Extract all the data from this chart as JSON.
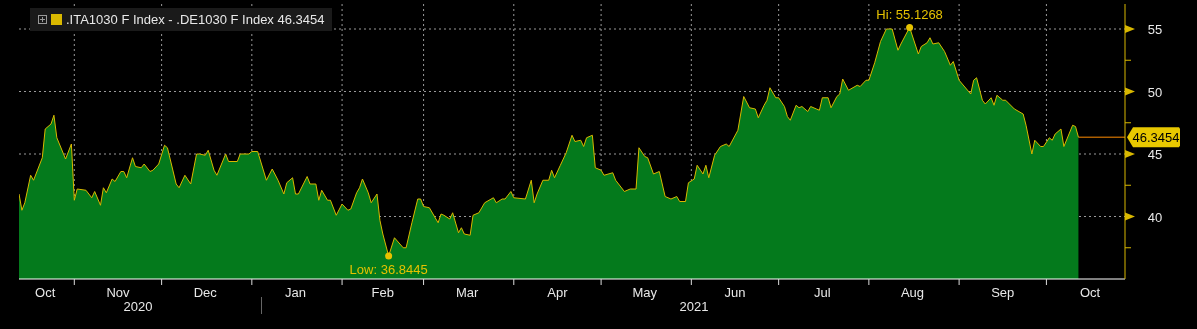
{
  "chart_data": {
    "type": "area",
    "annotations": [
      {
        "text": "Low: 36.8445",
        "x": "2021-02-17",
        "y": 36.8445
      },
      {
        "text": "Hi: 55.1268",
        "x": "2021-08-15",
        "y": 55.1268
      },
      "2020",
      "2021"
    ],
    "x": [
      "2020-10-13",
      "2020-10-14",
      "2020-10-15",
      "2020-10-17",
      "2020-10-18",
      "2020-10-21",
      "2020-10-22",
      "2020-10-24",
      "2020-10-25",
      "2020-10-26",
      "2020-10-29",
      "2020-10-31",
      "2020-11-01",
      "2020-11-02",
      "2020-11-05",
      "2020-11-07",
      "2020-11-08",
      "2020-11-10",
      "2020-11-11",
      "2020-11-12",
      "2020-11-14",
      "2020-11-15",
      "2020-11-17",
      "2020-11-18",
      "2020-11-19",
      "2020-11-21",
      "2020-11-22",
      "2020-11-24",
      "2020-11-25",
      "2020-11-27",
      "2020-11-28",
      "2020-11-30",
      "2020-12-02",
      "2020-12-03",
      "2020-12-06",
      "2020-12-07",
      "2020-12-09",
      "2020-12-11",
      "2020-12-13",
      "2020-12-14",
      "2020-12-16",
      "2020-12-17",
      "2020-12-19",
      "2020-12-20",
      "2020-12-23",
      "2020-12-24",
      "2020-12-27",
      "2020-12-28",
      "2020-12-31",
      "2021-01-01",
      "2021-01-03",
      "2021-01-06",
      "2021-01-08",
      "2021-01-10",
      "2021-01-12",
      "2021-01-13",
      "2021-01-15",
      "2021-01-16",
      "2021-01-17",
      "2021-01-20",
      "2021-01-21",
      "2021-01-23",
      "2021-01-24",
      "2021-01-25",
      "2021-01-27",
      "2021-01-28",
      "2021-01-30",
      "2021-02-01",
      "2021-02-03",
      "2021-02-04",
      "2021-02-06",
      "2021-02-07",
      "2021-02-08",
      "2021-02-10",
      "2021-02-11",
      "2021-02-13",
      "2021-02-14",
      "2021-02-15",
      "2021-02-17",
      "2021-02-19",
      "2021-02-22",
      "2021-02-23",
      "2021-02-25",
      "2021-02-27",
      "2021-02-28",
      "2021-03-01",
      "2021-03-03",
      "2021-03-06",
      "2021-03-07",
      "2021-03-08",
      "2021-03-10",
      "2021-03-11",
      "2021-03-13",
      "2021-03-14",
      "2021-03-15",
      "2021-03-17",
      "2021-03-18",
      "2021-03-20",
      "2021-03-22",
      "2021-03-25",
      "2021-03-26",
      "2021-03-28",
      "2021-03-29",
      "2021-03-31",
      "2021-04-01",
      "2021-04-05",
      "2021-04-07",
      "2021-04-08",
      "2021-04-09",
      "2021-04-11",
      "2021-04-13",
      "2021-04-14",
      "2021-04-15",
      "2021-04-17",
      "2021-04-19",
      "2021-04-21",
      "2021-04-22",
      "2021-04-24",
      "2021-04-25",
      "2021-04-26",
      "2021-04-28",
      "2021-04-29",
      "2021-05-01",
      "2021-05-02",
      "2021-05-05",
      "2021-05-06",
      "2021-05-09",
      "2021-05-11",
      "2021-05-13",
      "2021-05-14",
      "2021-05-16",
      "2021-05-17",
      "2021-05-19",
      "2021-05-21",
      "2021-05-23",
      "2021-05-25",
      "2021-05-27",
      "2021-05-28",
      "2021-05-30",
      "2021-05-31",
      "2021-06-02",
      "2021-06-03",
      "2021-06-05",
      "2021-06-06",
      "2021-06-07",
      "2021-06-09",
      "2021-06-11",
      "2021-06-13",
      "2021-06-14",
      "2021-06-17",
      "2021-06-19",
      "2021-06-21",
      "2021-06-23",
      "2021-06-24",
      "2021-06-26",
      "2021-06-27",
      "2021-06-28",
      "2021-06-30",
      "2021-07-01",
      "2021-07-03",
      "2021-07-04",
      "2021-07-05",
      "2021-07-07",
      "2021-07-08",
      "2021-07-09",
      "2021-07-11",
      "2021-07-12",
      "2021-07-14",
      "2021-07-15",
      "2021-07-16",
      "2021-07-18",
      "2021-07-19",
      "2021-07-21",
      "2021-07-22",
      "2021-07-23",
      "2021-07-25",
      "2021-07-28",
      "2021-07-29",
      "2021-07-31",
      "2021-08-01",
      "2021-08-03",
      "2021-08-05",
      "2021-08-07",
      "2021-08-08",
      "2021-08-09",
      "2021-08-11",
      "2021-08-12",
      "2021-08-15",
      "2021-08-18",
      "2021-08-19",
      "2021-08-21",
      "2021-08-22",
      "2021-08-23",
      "2021-08-25",
      "2021-08-27",
      "2021-08-29",
      "2021-08-30",
      "2021-09-01",
      "2021-09-05",
      "2021-09-06",
      "2021-09-07",
      "2021-09-09",
      "2021-09-10",
      "2021-09-12",
      "2021-09-13",
      "2021-09-14",
      "2021-09-16",
      "2021-09-17",
      "2021-09-20",
      "2021-09-23",
      "2021-09-24",
      "2021-09-26",
      "2021-09-27",
      "2021-09-29",
      "2021-09-30",
      "2021-10-02",
      "2021-10-03",
      "2021-10-04",
      "2021-10-06",
      "2021-10-07",
      "2021-10-10",
      "2021-10-11",
      "2021-10-12"
    ],
    "series": [
      {
        "type": "line",
        "name": ".ITA1030 F Index - .DE1030 F Index 46.3454",
        "color": "#d9b800",
        "values": [
          41.8,
          40.5,
          41.1,
          43.3,
          42.9,
          44.7,
          47.0,
          47.4,
          48.1,
          46.3,
          44.6,
          45.8,
          41.3,
          42.2,
          42.1,
          41.5,
          42.0,
          40.9,
          42.3,
          41.9,
          43.0,
          42.8,
          43.6,
          43.6,
          43.1,
          44.7,
          44.0,
          43.9,
          44.2,
          43.6,
          43.7,
          44.2,
          45.7,
          45.5,
          42.6,
          42.3,
          43.3,
          42.6,
          45.0,
          45.0,
          44.9,
          45.3,
          43.7,
          43.3,
          45.0,
          44.4,
          44.4,
          45.0,
          45.0,
          45.2,
          45.2,
          42.9,
          43.8,
          42.9,
          41.8,
          42.7,
          43.1,
          41.8,
          41.8,
          43.2,
          42.6,
          42.6,
          41.3,
          42.1,
          41.3,
          41.3,
          40.1,
          41.0,
          40.5,
          40.6,
          41.9,
          42.3,
          43.0,
          41.9,
          41.1,
          41.8,
          39.7,
          38.6,
          36.8445,
          38.3,
          37.5,
          37.5,
          39.5,
          41.4,
          41.4,
          40.8,
          40.7,
          39.5,
          40.2,
          40.1,
          39.8,
          40.3,
          38.7,
          39.1,
          38.6,
          38.5,
          40.1,
          40.3,
          41.1,
          41.5,
          41.1,
          41.4,
          41.4,
          42.0,
          41.5,
          41.4,
          42.9,
          41.1,
          41.8,
          42.9,
          42.9,
          43.7,
          43.1,
          44.1,
          45.1,
          46.5,
          46.0,
          46.1,
          45.6,
          46.3,
          46.5,
          43.9,
          43.7,
          43.3,
          43.5,
          42.9,
          42.0,
          42.2,
          42.2,
          45.5,
          44.8,
          44.7,
          43.4,
          43.6,
          41.6,
          41.4,
          41.6,
          41.2,
          41.2,
          42.7,
          43.0,
          44.1,
          43.4,
          44.1,
          43.1,
          44.9,
          45.6,
          45.8,
          45.6,
          46.9,
          49.6,
          48.7,
          48.6,
          47.9,
          48.9,
          49.3,
          50.3,
          49.5,
          49.5,
          48.8,
          48.0,
          47.7,
          48.9,
          48.7,
          48.8,
          48.4,
          48.8,
          48.6,
          48.5,
          49.5,
          49.5,
          48.7,
          49.6,
          49.8,
          51.0,
          50.1,
          50.5,
          50.4,
          50.9,
          50.9,
          52.3,
          54.0,
          55.0,
          55.0,
          55.0,
          53.3,
          53.8,
          55.1268,
          53.0,
          53.6,
          53.9,
          54.3,
          53.8,
          53.9,
          53.2,
          52.1,
          52.4,
          50.9,
          49.8,
          50.9,
          51.1,
          49.3,
          49.0,
          49.5,
          48.9,
          49.7,
          49.3,
          49.3,
          48.6,
          48.2,
          47.3,
          45.0,
          46.1,
          45.6,
          45.6,
          46.3,
          46.1,
          46.6,
          47.0,
          45.6,
          47.3,
          47.2,
          46.3454
        ]
      },
      {
        "color": "#047a1c",
        "values": [
          41.8,
          40.5,
          41.1,
          43.3,
          42.9,
          44.7,
          47.0,
          47.4,
          48.1,
          46.3,
          44.6,
          45.8,
          41.3,
          42.2,
          42.1,
          41.5,
          42.0,
          40.9,
          42.3,
          41.9,
          43.0,
          42.8,
          43.6,
          43.6,
          43.1,
          44.7,
          44.0,
          43.9,
          44.2,
          43.6,
          43.7,
          44.2,
          45.7,
          45.5,
          42.6,
          42.3,
          43.3,
          42.6,
          45.0,
          45.0,
          44.9,
          45.3,
          43.7,
          43.3,
          45.0,
          44.4,
          44.4,
          45.0,
          45.0,
          45.2,
          45.2,
          42.9,
          43.8,
          42.9,
          41.8,
          42.7,
          43.1,
          41.8,
          41.8,
          43.2,
          42.6,
          42.6,
          41.3,
          42.1,
          41.3,
          41.3,
          40.1,
          41.0,
          40.5,
          40.6,
          41.9,
          42.3,
          43.0,
          41.9,
          41.1,
          41.8,
          39.7,
          38.6,
          36.8445,
          38.3,
          37.5,
          37.5,
          39.5,
          41.4,
          41.4,
          40.8,
          40.7,
          39.5,
          40.2,
          40.1,
          39.8,
          40.3,
          38.7,
          39.1,
          38.6,
          38.5,
          40.1,
          40.3,
          41.1,
          41.5,
          41.1,
          41.4,
          41.4,
          42.0,
          41.5,
          41.4,
          42.9,
          41.1,
          41.8,
          42.9,
          42.9,
          43.7,
          43.1,
          44.1,
          45.1,
          46.5,
          46.0,
          46.1,
          45.6,
          46.3,
          46.5,
          43.9,
          43.7,
          43.3,
          43.5,
          42.9,
          42.0,
          42.2,
          42.2,
          45.5,
          44.8,
          44.7,
          43.4,
          43.6,
          41.6,
          41.4,
          41.6,
          41.2,
          41.2,
          42.7,
          43.0,
          44.1,
          43.4,
          44.1,
          43.1,
          44.9,
          45.6,
          45.8,
          45.6,
          46.9,
          49.6,
          48.7,
          48.6,
          47.9,
          48.9,
          49.3,
          50.3,
          49.5,
          49.5,
          48.8,
          48.0,
          47.7,
          48.9,
          48.7,
          48.8,
          48.4,
          48.8,
          48.6,
          48.5,
          49.5,
          49.5,
          48.7,
          49.6,
          49.8,
          51.0,
          50.1,
          50.5,
          50.4,
          50.9,
          50.9,
          52.3,
          54.0,
          55.0,
          55.0,
          55.0,
          53.3,
          53.8,
          55.1268,
          53.0,
          53.6,
          53.9,
          54.3,
          53.8,
          53.9,
          53.2,
          52.1,
          52.4,
          50.9,
          49.8,
          50.9,
          51.1,
          49.3,
          49.0,
          49.5,
          48.9,
          49.7,
          49.3,
          49.3,
          48.6,
          48.2,
          47.3,
          45.0,
          46.1,
          45.6,
          45.6,
          46.3,
          46.1,
          46.6,
          47.0,
          45.6,
          47.3,
          47.2,
          46.3454
        ]
      }
    ],
    "xlim": [
      "2020-10-13",
      "2021-10-28"
    ],
    "xticks": [
      {
        "value": "2020-10-22",
        "label": "Oct"
      },
      {
        "value": "2020-11-01",
        "label": null
      },
      {
        "value": "2020-11-16",
        "label": "Nov"
      },
      {
        "value": "2020-12-01",
        "label": null
      },
      {
        "value": "2020-12-16",
        "label": "Dec"
      },
      {
        "value": "2021-01-01",
        "label": null
      },
      {
        "value": "2021-01-16",
        "label": "Jan"
      },
      {
        "value": "2021-02-01",
        "label": null
      },
      {
        "value": "2021-02-15",
        "label": "Feb"
      },
      {
        "value": "2021-03-01",
        "label": null
      },
      {
        "value": "2021-03-16",
        "label": "Mar"
      },
      {
        "value": "2021-04-01",
        "label": null
      },
      {
        "value": "2021-04-16",
        "label": "Apr"
      },
      {
        "value": "2021-05-01",
        "label": null
      },
      {
        "value": "2021-05-16",
        "label": "May"
      },
      {
        "value": "2021-06-01",
        "label": null
      },
      {
        "value": "2021-06-16",
        "label": "Jun"
      },
      {
        "value": "2021-07-01",
        "label": null
      },
      {
        "value": "2021-07-16",
        "label": "Jul"
      },
      {
        "value": "2021-08-01",
        "label": null
      },
      {
        "value": "2021-08-16",
        "label": "Aug"
      },
      {
        "value": "2021-09-01",
        "label": null
      },
      {
        "value": "2021-09-16",
        "label": "Sep"
      },
      {
        "value": "2021-10-01",
        "label": null
      },
      {
        "value": "2021-10-16",
        "label": "Oct"
      }
    ],
    "ylim": [
      35,
      57
    ],
    "yticks": [
      {
        "value": 37.5,
        "label": null
      },
      40,
      {
        "value": 42.5,
        "label": null
      },
      45,
      {
        "value": 47.5,
        "label": null
      },
      50,
      {
        "value": 52.5,
        "label": null
      },
      55
    ],
    "ref_lines": [
      {
        "axis": "y",
        "value": 46.3454,
        "label": "46.3454",
        "color": "#ff8c00"
      }
    ],
    "grid": true,
    "legend": "top left"
  }
}
